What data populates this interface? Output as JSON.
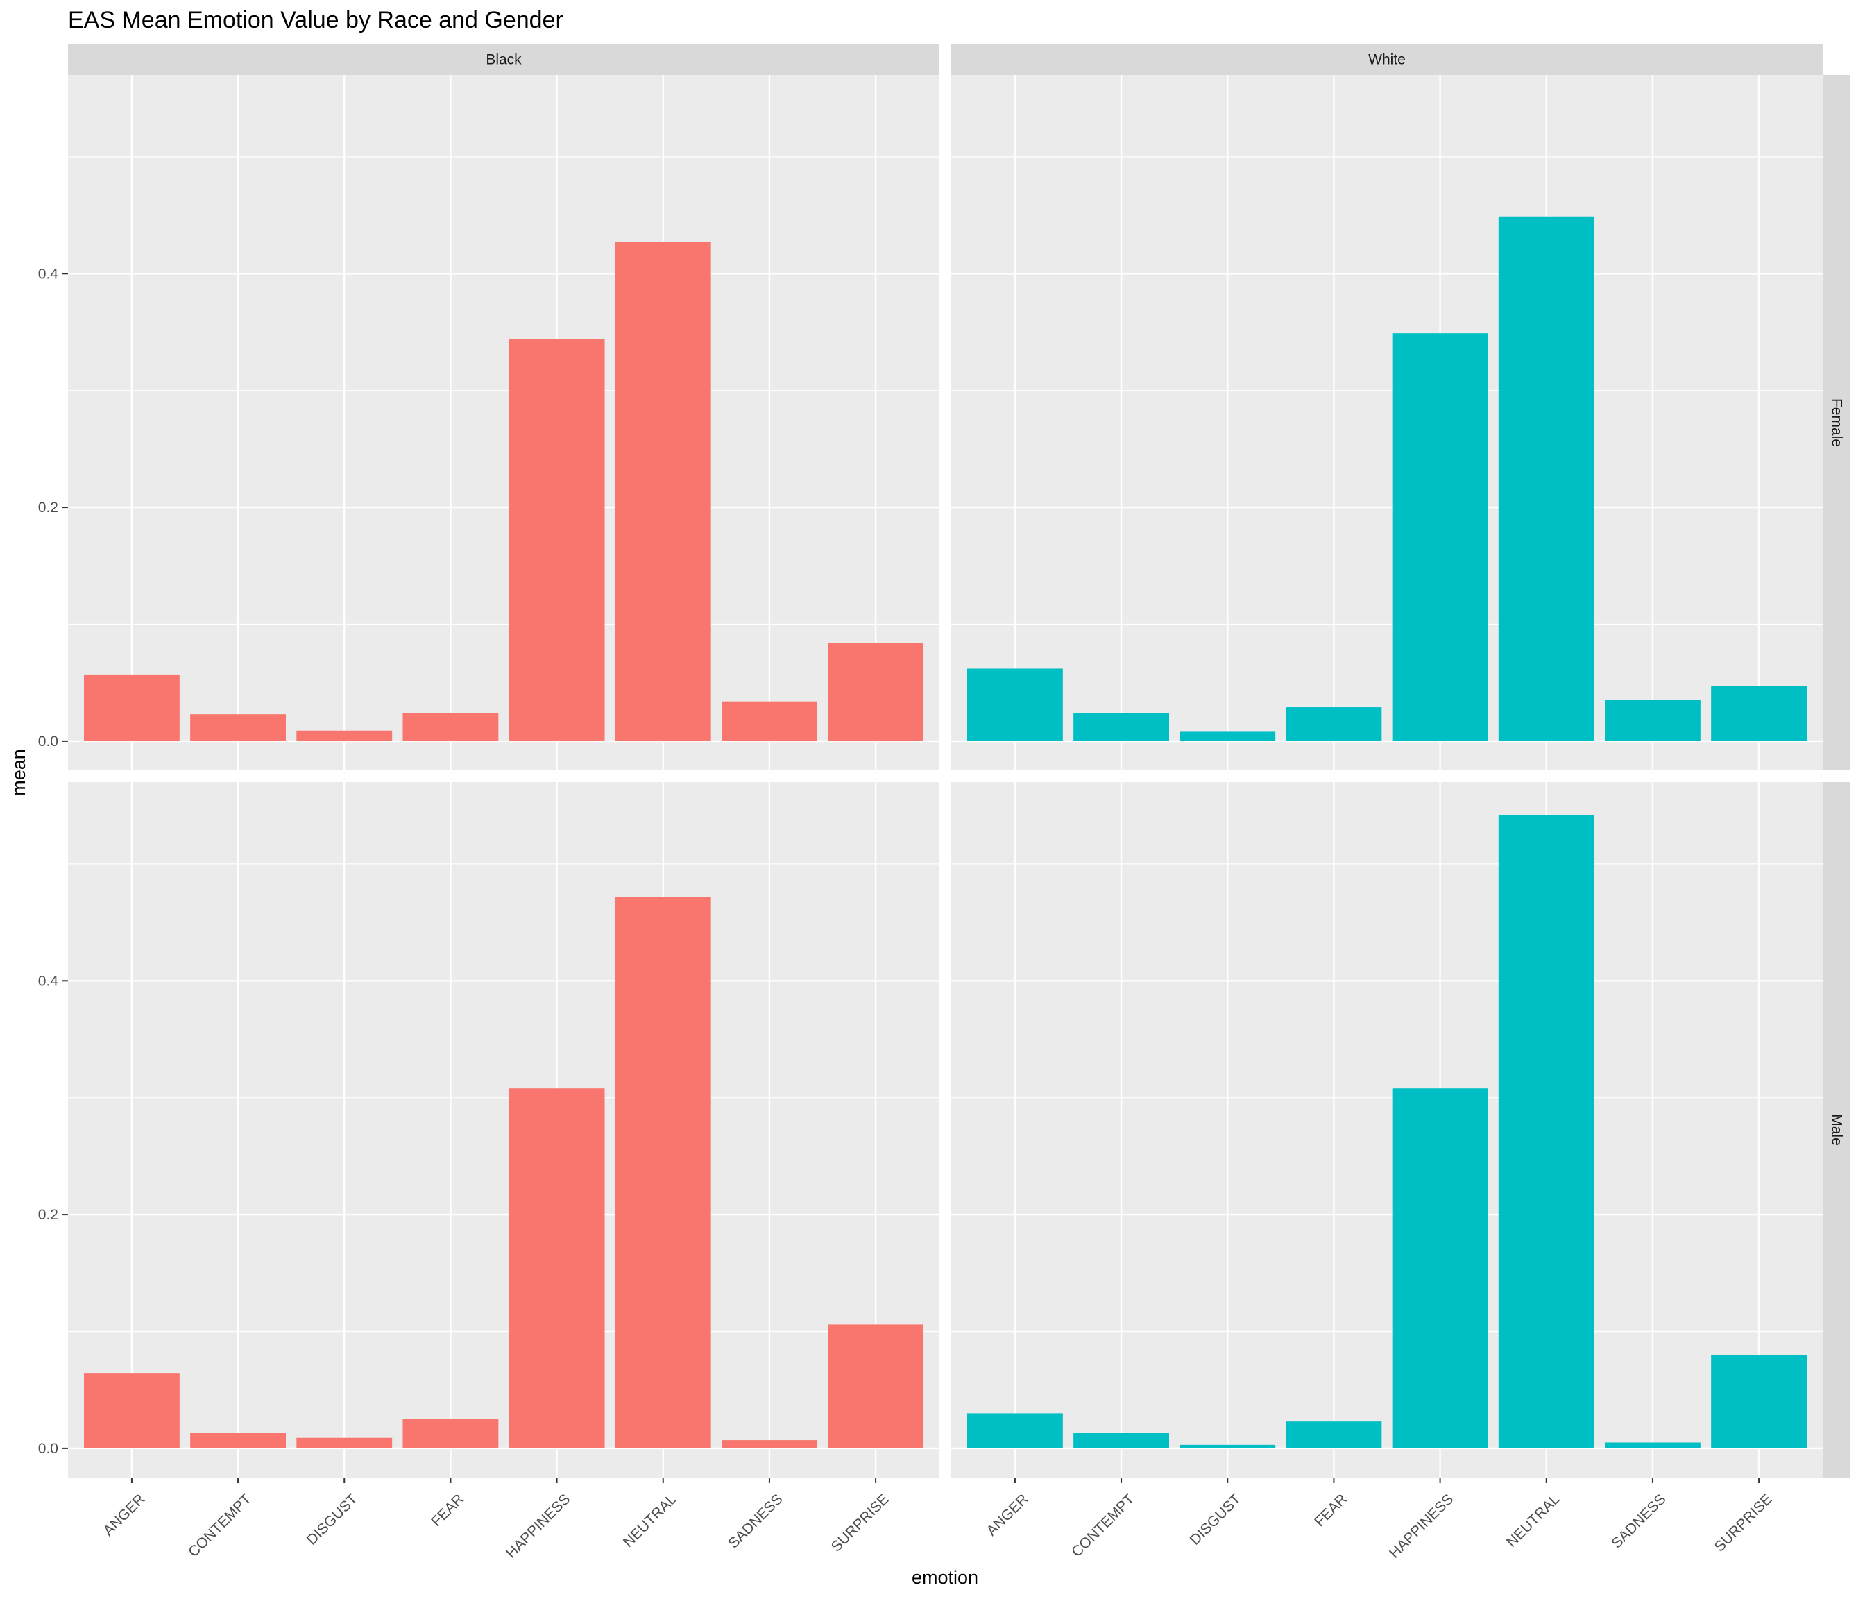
{
  "chart_data": {
    "type": "bar",
    "title": "EAS Mean Emotion Value by Race and Gender",
    "xlabel": "emotion",
    "ylabel": "mean",
    "ylim": [
      -0.025,
      0.57
    ],
    "yticks": [
      0.0,
      0.2,
      0.4
    ],
    "ytick_labels": [
      "0.0",
      "0.2",
      "0.4"
    ],
    "grid": true,
    "legend": "none",
    "categories": [
      "ANGER",
      "CONTEMPT",
      "DISGUST",
      "FEAR",
      "HAPPINESS",
      "NEUTRAL",
      "SADNESS",
      "SURPRISE"
    ],
    "facet_columns": [
      "Black",
      "White"
    ],
    "facet_rows": [
      "Female",
      "Male"
    ],
    "colors": {
      "Black": "#F8766D",
      "White": "#00BFC4"
    },
    "panels": [
      {
        "race": "Black",
        "gender": "Female",
        "values": [
          0.057,
          0.023,
          0.009,
          0.024,
          0.344,
          0.427,
          0.034,
          0.084
        ]
      },
      {
        "race": "White",
        "gender": "Female",
        "values": [
          0.062,
          0.024,
          0.008,
          0.029,
          0.349,
          0.449,
          0.035,
          0.047
        ]
      },
      {
        "race": "Black",
        "gender": "Male",
        "values": [
          0.064,
          0.013,
          0.009,
          0.025,
          0.308,
          0.472,
          0.007,
          0.106
        ]
      },
      {
        "race": "White",
        "gender": "Male",
        "values": [
          0.03,
          0.013,
          0.003,
          0.023,
          0.308,
          0.542,
          0.005,
          0.08
        ]
      }
    ]
  }
}
